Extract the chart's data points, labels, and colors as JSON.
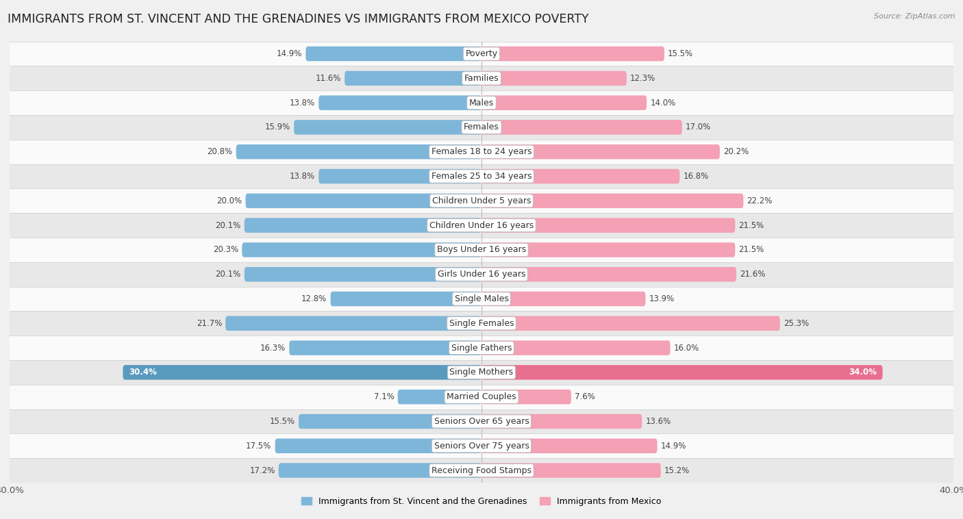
{
  "title": "IMMIGRANTS FROM ST. VINCENT AND THE GRENADINES VS IMMIGRANTS FROM MEXICO POVERTY",
  "source": "Source: ZipAtlas.com",
  "categories": [
    "Poverty",
    "Families",
    "Males",
    "Females",
    "Females 18 to 24 years",
    "Females 25 to 34 years",
    "Children Under 5 years",
    "Children Under 16 years",
    "Boys Under 16 years",
    "Girls Under 16 years",
    "Single Males",
    "Single Females",
    "Single Fathers",
    "Single Mothers",
    "Married Couples",
    "Seniors Over 65 years",
    "Seniors Over 75 years",
    "Receiving Food Stamps"
  ],
  "left_values": [
    14.9,
    11.6,
    13.8,
    15.9,
    20.8,
    13.8,
    20.0,
    20.1,
    20.3,
    20.1,
    12.8,
    21.7,
    16.3,
    30.4,
    7.1,
    15.5,
    17.5,
    17.2
  ],
  "right_values": [
    15.5,
    12.3,
    14.0,
    17.0,
    20.2,
    16.8,
    22.2,
    21.5,
    21.5,
    21.6,
    13.9,
    25.3,
    16.0,
    34.0,
    7.6,
    13.6,
    14.9,
    15.2
  ],
  "left_color": "#7EB6D9",
  "right_color": "#F4A0B5",
  "highlight_left_color": "#5a9abf",
  "highlight_right_color": "#e8708f",
  "left_label": "Immigrants from St. Vincent and the Grenadines",
  "right_label": "Immigrants from Mexico",
  "axis_max": 40.0,
  "background_color": "#f0f0f0",
  "row_bg_light": "#fafafa",
  "row_bg_dark": "#e8e8e8",
  "bar_height": 0.6,
  "title_fontsize": 12.5,
  "label_fontsize": 9,
  "value_fontsize": 8.5,
  "axis_label_fontsize": 9.5,
  "highlight_rows": [
    13
  ]
}
